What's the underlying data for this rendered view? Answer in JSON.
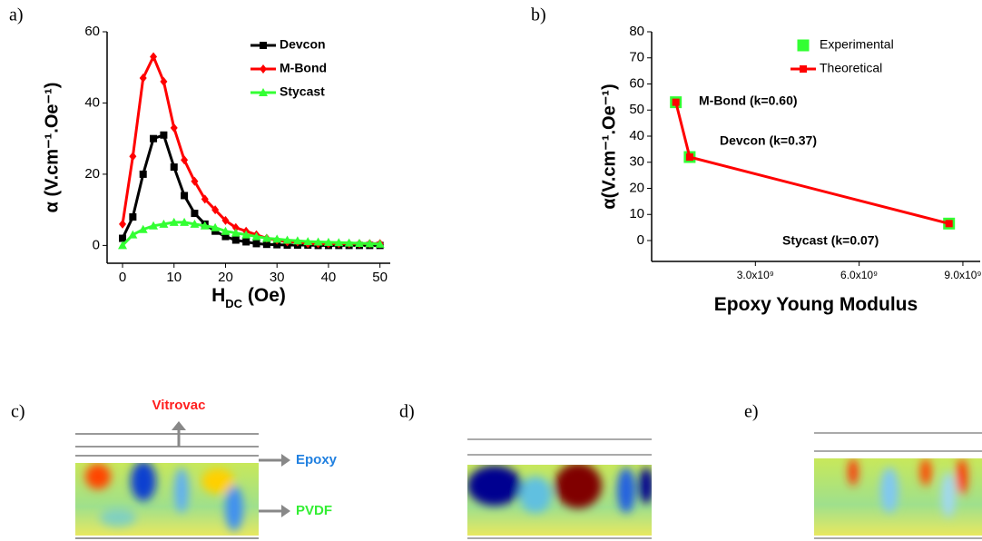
{
  "chart_data": [
    {
      "type": "line",
      "label": "a)",
      "xlabel": [
        "H",
        "DC",
        " (Oe)"
      ],
      "ylabel": "α (V.cm⁻¹.Oe⁻¹)",
      "x": [
        0,
        2,
        4,
        6,
        8,
        10,
        12,
        14,
        16,
        18,
        20,
        22,
        24,
        26,
        28,
        30,
        32,
        34,
        36,
        38,
        40,
        42,
        44,
        46,
        48,
        50
      ],
      "series": [
        {
          "name": "Devcon",
          "color": "#000000",
          "marker": "square",
          "values": [
            2,
            8,
            20,
            30,
            31,
            22,
            14,
            9,
            6,
            4,
            2.5,
            1.5,
            1,
            0.5,
            0.3,
            0.2,
            0.1,
            0.1,
            0.1,
            0,
            0,
            0,
            0,
            0,
            0,
            0
          ]
        },
        {
          "name": "M-Bond",
          "color": "#ff0000",
          "marker": "diamond",
          "values": [
            6,
            25,
            47,
            53,
            46,
            33,
            24,
            18,
            13,
            10,
            7,
            5,
            4,
            3,
            2,
            1.5,
            1,
            1,
            0.5,
            0.5,
            0.5,
            0.5,
            0.5,
            0.5,
            0.5,
            0.5
          ]
        },
        {
          "name": "Stycast",
          "color": "#33ff33",
          "marker": "triangle",
          "values": [
            0,
            3,
            4.5,
            5.5,
            6,
            6.5,
            6.5,
            6,
            5.5,
            5,
            4,
            3.5,
            3,
            2.5,
            2,
            1.8,
            1.5,
            1.3,
            1.1,
            1,
            0.9,
            0.8,
            0.7,
            0.6,
            0.5,
            0.4
          ]
        }
      ],
      "xlim": [
        -3,
        52
      ],
      "ylim": [
        -5,
        60
      ],
      "xticks": [
        0,
        10,
        20,
        30,
        40,
        50
      ],
      "yticks": [
        0,
        20,
        40,
        60
      ],
      "legend": "upper right"
    },
    {
      "type": "line",
      "label": "b)",
      "xlabel": [
        "Epoxy Young Modulus"
      ],
      "ylabel": "α(V.cm⁻¹.Oe⁻¹)",
      "x": [
        700000000,
        1100000000,
        8600000000
      ],
      "series": [
        {
          "name": "Experimental",
          "color": "#33ff33",
          "marker": "bigsquare",
          "line": false,
          "values": [
            53,
            32,
            6.5
          ]
        },
        {
          "name": "Theoretical",
          "color": "#ff0000",
          "marker": "square",
          "values": [
            53,
            32,
            6.5
          ]
        }
      ],
      "xlim": [
        0,
        9500000000
      ],
      "ylim": [
        -8,
        80
      ],
      "xticks": [
        {
          "value": 3000000000,
          "label": "3.0x10⁹"
        },
        {
          "value": 6000000000,
          "label": "6.0x10⁹"
        },
        {
          "value": 9000000000,
          "label": "9.0x10⁹"
        }
      ],
      "yticks": [
        0,
        10,
        20,
        30,
        40,
        50,
        60,
        70,
        80
      ],
      "annotations": [
        "M-Bond (k=0.60)",
        "Devcon (k=0.37)",
        "Stycast (k=0.07)"
      ],
      "legend": "upper right"
    }
  ],
  "panels": {
    "labels": [
      "c)",
      "d)",
      "e)"
    ],
    "annotations": [
      "Vitrovac",
      "Epoxy",
      "PVDF"
    ]
  }
}
